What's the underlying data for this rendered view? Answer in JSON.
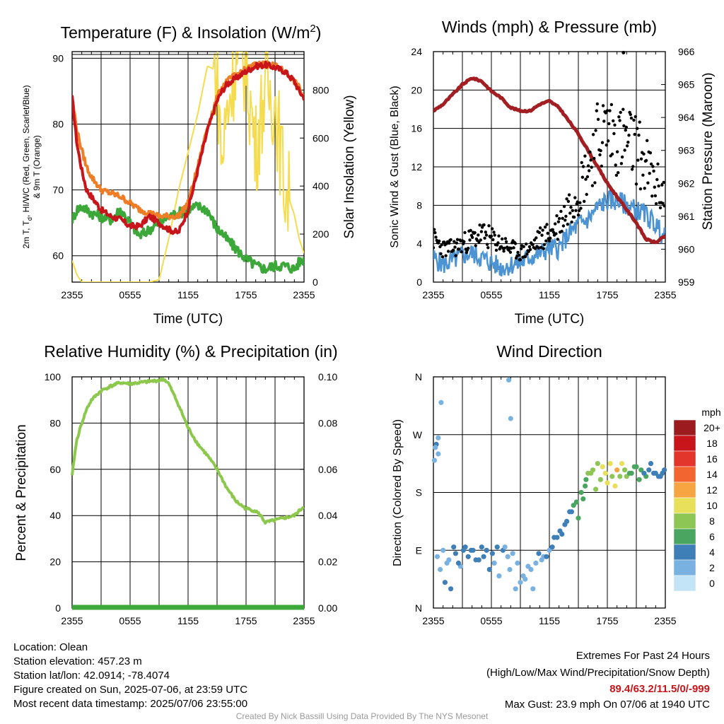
{
  "chart_data": [
    {
      "type": "line",
      "title": "Temperature (F) & Insolation (W/m2)",
      "title_main": "Temperature (F) & Insolation (W/m",
      "title_sup": "2",
      "title_close": ")",
      "xlabel": "Time (UTC)",
      "ylabel": "2m T, Td, HI/WC (Red, Green, Scarlet/Blue) & 9m T (Orange)",
      "ylabel_line1": "2m T, T",
      "ylabel_sub": "d",
      "ylabel_rest": ", HI/WC (Red, Green, Scarlet/Blue)",
      "ylabel_line2": "& 9m T (Orange)",
      "ylabel2": "Solar Insolation (Yellow)",
      "x_ticks": [
        "2355",
        "0555",
        "1155",
        "1755",
        "2355"
      ],
      "ylim": [
        56,
        91
      ],
      "y_ticks": [
        60,
        70,
        80,
        90
      ],
      "y2lim": [
        0,
        960
      ],
      "y2_ticks": [
        0,
        200,
        400,
        600,
        800
      ],
      "xlim_hours": [
        0,
        24
      ],
      "x_hours": [
        0,
        0.5,
        1,
        1.5,
        2,
        3,
        4,
        5,
        6,
        7,
        8,
        9,
        10,
        11,
        12,
        13,
        14,
        15,
        15.5,
        16,
        17,
        18,
        19,
        20,
        21,
        22,
        23,
        23.5,
        24
      ],
      "series": [
        {
          "name": "2m T",
          "role": "temperature",
          "color": "#c8151b",
          "values": [
            84,
            77,
            73,
            70,
            69,
            67,
            66,
            65.5,
            64.5,
            64.5,
            66,
            65,
            64,
            63.5,
            67,
            73,
            79,
            83.5,
            85,
            86,
            87,
            88,
            88.8,
            89,
            88.6,
            88,
            86.5,
            85,
            84
          ]
        },
        {
          "name": "Td",
          "role": "dewpoint",
          "color": "#3ca83a",
          "values": [
            65.5,
            67,
            67.5,
            67,
            66.5,
            66,
            65.5,
            67,
            65,
            63,
            64,
            65,
            66,
            66.5,
            67,
            67.5,
            67,
            64,
            63.5,
            62.5,
            61,
            59.5,
            58.5,
            58,
            58.5,
            58.5,
            58,
            59,
            59.5
          ]
        },
        {
          "name": "9m T",
          "role": "temperature_9m",
          "color": "#ee7d26",
          "values": [
            84,
            79,
            76,
            73.5,
            72,
            70,
            69.5,
            69,
            68,
            67,
            66.5,
            66,
            66,
            66,
            68,
            73.5,
            79.5,
            84,
            85.5,
            86.5,
            87.5,
            88.3,
            89,
            89.2,
            88.8,
            88,
            86.5,
            85.5,
            84
          ]
        },
        {
          "name": "Solar Insolation",
          "role": "insolation",
          "axis": "right",
          "color": "#f5dc4e",
          "values": [
            90,
            30,
            0,
            0,
            0,
            0,
            0,
            0,
            0,
            0,
            0,
            10,
            180,
            380,
            540,
            700,
            900,
            880,
            500,
            700,
            950,
            900,
            550,
            820,
            750,
            400,
            280,
            180,
            120
          ]
        }
      ]
    },
    {
      "type": "line",
      "title": "Winds (mph) & Pressure (mb)",
      "xlabel": "Time (UTC)",
      "ylabel": "Sonic Wind & Gust (Blue, Black)",
      "ylabel2": "Station Pressure (Maroon)",
      "x_ticks": [
        "2355",
        "0555",
        "1155",
        "1755",
        "2355"
      ],
      "ylim": [
        0,
        24
      ],
      "y_ticks": [
        0,
        4,
        8,
        12,
        16,
        20,
        24
      ],
      "y2lim": [
        959,
        966
      ],
      "y2_ticks": [
        959,
        960,
        961,
        962,
        963,
        964,
        965,
        966
      ],
      "xlim_hours": [
        0,
        24
      ],
      "x_hours": [
        0,
        1,
        2,
        3,
        4,
        5,
        6,
        7,
        8,
        9,
        10,
        11,
        12,
        13,
        14,
        15,
        16,
        17,
        18,
        19,
        20,
        21,
        22,
        23,
        24
      ],
      "series": [
        {
          "name": "Sonic Wind",
          "role": "wind",
          "color": "#4c93d3",
          "values": [
            2.5,
            1.8,
            2.2,
            2.8,
            3,
            2.5,
            2,
            1.5,
            1.8,
            2,
            2.6,
            3,
            3.5,
            3.5,
            5,
            6,
            6.5,
            7.8,
            8.5,
            8.5,
            8,
            7.5,
            7,
            6,
            4.5
          ]
        },
        {
          "name": "Gust",
          "role": "gust",
          "color": "#000000",
          "values": [
            4.5,
            3.5,
            3.5,
            4,
            4.5,
            5,
            4.5,
            4,
            3.5,
            3,
            3.5,
            4.5,
            5,
            6,
            8,
            9.5,
            12,
            15,
            16,
            15,
            14.5,
            14,
            12,
            10,
            9
          ]
        },
        {
          "name": "Station Pressure",
          "role": "pressure",
          "axis": "right",
          "color": "#a31e22",
          "values": [
            964.2,
            964.4,
            964.7,
            965.0,
            965.2,
            965.1,
            964.8,
            964.6,
            964.3,
            964.2,
            964.2,
            964.4,
            964.5,
            964.3,
            963.9,
            963.5,
            963.0,
            962.5,
            962.0,
            961.6,
            961.2,
            960.8,
            960.3,
            960.2,
            960.4
          ]
        }
      ],
      "max_gust_point": {
        "x_hours": 19.67,
        "value": 23.9
      }
    },
    {
      "type": "line",
      "title": "Relative Humidity (%) & Precipitation (in)",
      "ylabel": "Percent & Precipitation",
      "x_ticks": [
        "2355",
        "0555",
        "1155",
        "1755",
        "2355"
      ],
      "ylim": [
        0,
        100
      ],
      "y_ticks": [
        0,
        20,
        40,
        60,
        80,
        100
      ],
      "y2lim": [
        0,
        0.1
      ],
      "y2_ticks": [
        "0.00",
        "0.02",
        "0.04",
        "0.06",
        "0.08",
        "0.10"
      ],
      "xlim_hours": [
        0,
        24
      ],
      "x_hours": [
        0,
        0.25,
        0.5,
        1,
        1.5,
        2,
        3,
        4,
        5,
        6,
        7,
        8,
        9,
        9.5,
        10,
        11,
        12,
        13,
        14,
        15,
        16,
        17,
        18,
        19,
        19.5,
        20,
        21,
        22,
        23,
        24
      ],
      "series": [
        {
          "name": "Relative Humidity",
          "role": "rh",
          "color": "#8cc84b",
          "values": [
            57,
            66,
            73,
            80,
            86,
            90,
            94,
            96,
            97.5,
            97,
            97.5,
            98,
            98.5,
            99,
            97,
            88,
            78,
            71,
            66,
            60,
            52,
            46,
            43,
            42,
            40,
            37,
            38,
            39,
            40,
            44
          ]
        },
        {
          "name": "Precipitation",
          "role": "precip",
          "color": "#3ca83a",
          "values": [
            0,
            0,
            0,
            0,
            0,
            0,
            0,
            0,
            0,
            0,
            0,
            0,
            0,
            0,
            0,
            0,
            0,
            0,
            0,
            0,
            0,
            0,
            0,
            0,
            0,
            0,
            0,
            0,
            0,
            0
          ]
        }
      ]
    },
    {
      "type": "scatter",
      "title": "Wind Direction",
      "ylabel": "Direction (Colored By Speed)",
      "x_ticks": [
        "2355",
        "0555",
        "1155",
        "1755",
        "2355"
      ],
      "y_ticks": [
        "N",
        "E",
        "S",
        "W",
        "N"
      ],
      "ylim": [
        0,
        360
      ],
      "xlim_hours": [
        0,
        24
      ],
      "x_hours": [
        0.1,
        0.3,
        0.5,
        1.0,
        1.4,
        1.8,
        2.3,
        2.8,
        3.3,
        3.9,
        4.4,
        5.0,
        5.5,
        6.1,
        6.6,
        7.2,
        7.7,
        8.2,
        8.7,
        9.3,
        9.8,
        10.3,
        10.9,
        11.4,
        12.0,
        12.5,
        13.1,
        13.6,
        14.1,
        14.5,
        15.0,
        15.5,
        16.0,
        16.5,
        17.0,
        17.5,
        18.0,
        18.5,
        19.0,
        19.5,
        20.0,
        20.5,
        21.0,
        21.5,
        22.0,
        22.5,
        23.0,
        23.5,
        23.9,
        0.4,
        0.7,
        1.2,
        1.6,
        2.1,
        2.6,
        3.1,
        3.6,
        4.1,
        4.7,
        5.2,
        5.8,
        6.3,
        6.8,
        7.4,
        7.9,
        8.5,
        9.0,
        9.5,
        10.1,
        10.6,
        11.2,
        11.7,
        12.3,
        12.8,
        13.3,
        13.8,
        14.3,
        14.8,
        15.3,
        15.8,
        16.3,
        16.8,
        17.3,
        17.8,
        18.3,
        18.8,
        19.3,
        19.8,
        20.3,
        20.8,
        21.3,
        21.8,
        22.3,
        22.8,
        23.3,
        23.7,
        0.2,
        0.5,
        0.8,
        7.8,
        8.0,
        15.7
      ],
      "y_deg": [
        230,
        255,
        265,
        90,
        70,
        30,
        85,
        65,
        95,
        90,
        75,
        95,
        90,
        85,
        95,
        90,
        80,
        85,
        70,
        50,
        65,
        30,
        85,
        80,
        90,
        110,
        120,
        130,
        150,
        160,
        140,
        170,
        210,
        215,
        225,
        220,
        195,
        205,
        215,
        225,
        205,
        210,
        220,
        215,
        205,
        225,
        210,
        205,
        215,
        80,
        60,
        40,
        75,
        95,
        70,
        90,
        80,
        90,
        75,
        80,
        60,
        70,
        50,
        95,
        60,
        30,
        40,
        45,
        60,
        70,
        75,
        80,
        95,
        110,
        115,
        135,
        150,
        165,
        180,
        200,
        210,
        185,
        200,
        210,
        225,
        190,
        205,
        215,
        210,
        220,
        200,
        210,
        215,
        210,
        205,
        210,
        250,
        240,
        320,
        355,
        295,
        190
      ],
      "speeds": [
        2,
        3,
        2,
        1,
        2,
        3,
        3,
        2,
        3,
        4,
        3,
        4,
        4,
        3,
        4,
        3,
        2,
        1,
        2,
        2,
        1,
        2,
        3,
        2,
        2,
        3,
        4,
        4,
        4,
        5,
        5,
        6,
        7,
        8,
        8,
        10,
        9,
        8,
        12,
        10,
        8,
        6,
        6,
        5,
        5,
        4,
        4,
        4,
        4,
        1,
        2,
        3,
        2,
        4,
        3,
        3,
        4,
        4,
        3,
        4,
        3,
        2,
        1,
        1,
        2,
        1,
        2,
        2,
        2,
        2,
        2,
        3,
        4,
        3,
        4,
        4,
        4,
        5,
        5,
        6,
        7,
        8,
        8,
        9,
        10,
        9,
        7,
        7,
        6,
        5,
        5,
        4,
        4,
        4,
        3,
        4,
        2,
        2,
        1,
        1,
        1,
        6
      ],
      "legend_title": "mph",
      "legend_labels": [
        "20+",
        "18",
        "16",
        "14",
        "12",
        "10",
        "8",
        "6",
        "4",
        "2",
        "0"
      ],
      "legend_colors": [
        "#9b1b1f",
        "#c8151b",
        "#e2352b",
        "#f26430",
        "#f7a542",
        "#e8e05a",
        "#8dc654",
        "#4aa560",
        "#3f7fb8",
        "#79b2e0",
        "#c3e3f6"
      ]
    }
  ],
  "info": {
    "location": "Location: Olean",
    "elevation": "Station elevation: 457.23 m",
    "latlon": "Station lat/lon: 42.0914; -78.4074",
    "created": "Figure created on Sun, 2025-07-06, at 23:59 UTC",
    "recent": "Most recent data timestamp: 2025/07/06 23:55:00"
  },
  "extremes": {
    "heading": "Extremes For Past 24 Hours",
    "subheading": "(High/Low/Max Wind/Precipitation/Snow Depth)",
    "values": "89.4/63.2/11.5/0/-999",
    "values_color": "#c8151b",
    "max_gust": "Max Gust: 23.9 mph On 07/06 at 1940 UTC"
  },
  "credit": "Created By Nick Bassill Using Data Provided By The NYS Mesonet"
}
